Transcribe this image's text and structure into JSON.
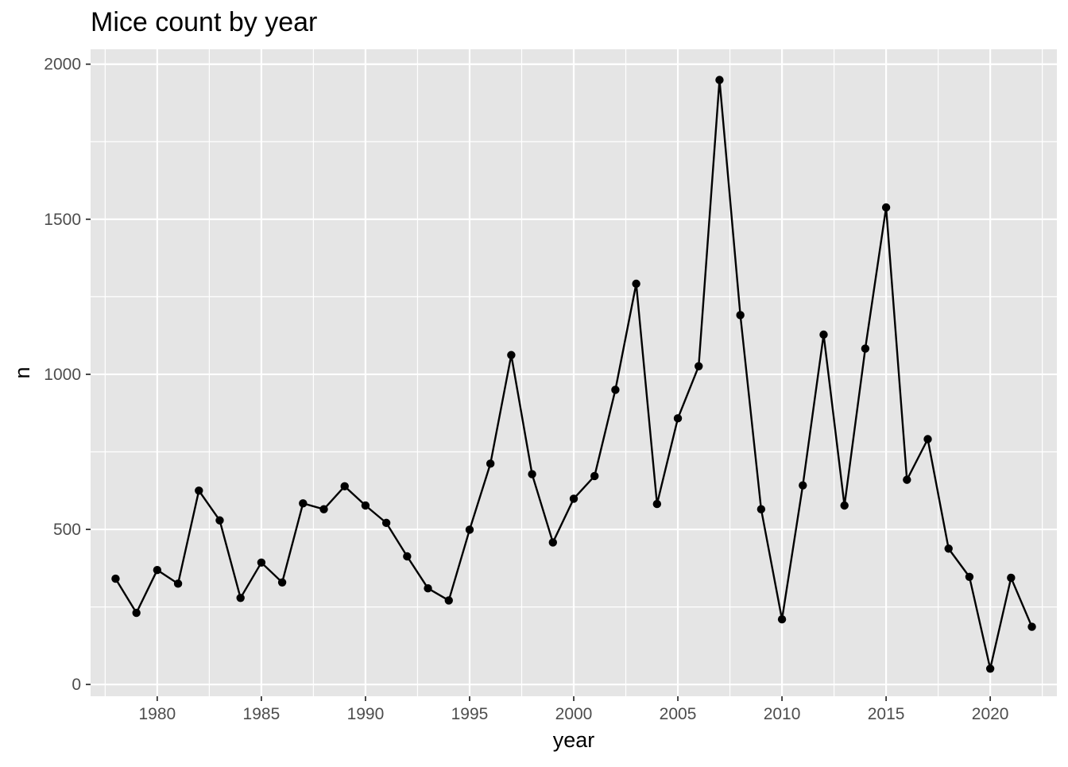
{
  "chart_data": {
    "type": "line",
    "title": "Mice count by year",
    "xlabel": "year",
    "ylabel": "n",
    "xlim": [
      1976.8,
      2023.2
    ],
    "ylim": [
      -38,
      2048
    ],
    "x_ticks": [
      1980,
      1985,
      1990,
      1995,
      2000,
      2005,
      2010,
      2015,
      2020
    ],
    "y_ticks": [
      0,
      500,
      1000,
      1500,
      2000
    ],
    "x_tick_labels": [
      "1980",
      "1985",
      "1990",
      "1995",
      "2000",
      "2005",
      "2010",
      "2015",
      "2020"
    ],
    "y_tick_labels": [
      "0",
      "500",
      "1000",
      "1500",
      "2000"
    ],
    "grid": true,
    "legend": "none",
    "panel_background": "#e5e5e5",
    "grid_color": "#ffffff",
    "line_color": "#000000",
    "point_color": "#000000",
    "series": [
      {
        "x": [
          1978,
          1979,
          1980,
          1981,
          1982,
          1983,
          1984,
          1985,
          1986,
          1987,
          1988,
          1989,
          1990,
          1991,
          1992,
          1993,
          1994,
          1995,
          1996,
          1997,
          1998,
          1999,
          2000,
          2001,
          2002,
          2003,
          2004,
          2005,
          2006,
          2007,
          2008,
          2009,
          2010,
          2011,
          2012,
          2013,
          2014,
          2015,
          2016,
          2017,
          2018,
          2019,
          2020,
          2021,
          2022
        ],
        "values": [
          341,
          231,
          369,
          325,
          625,
          529,
          279,
          393,
          329,
          584,
          565,
          639,
          577,
          521,
          413,
          310,
          271,
          499,
          712,
          1062,
          678,
          458,
          599,
          672,
          950,
          1292,
          582,
          858,
          1026,
          1949,
          1191,
          565,
          210,
          642,
          1128,
          577,
          1083,
          1538,
          660,
          791,
          438,
          347,
          51,
          344,
          186
        ]
      }
    ]
  }
}
